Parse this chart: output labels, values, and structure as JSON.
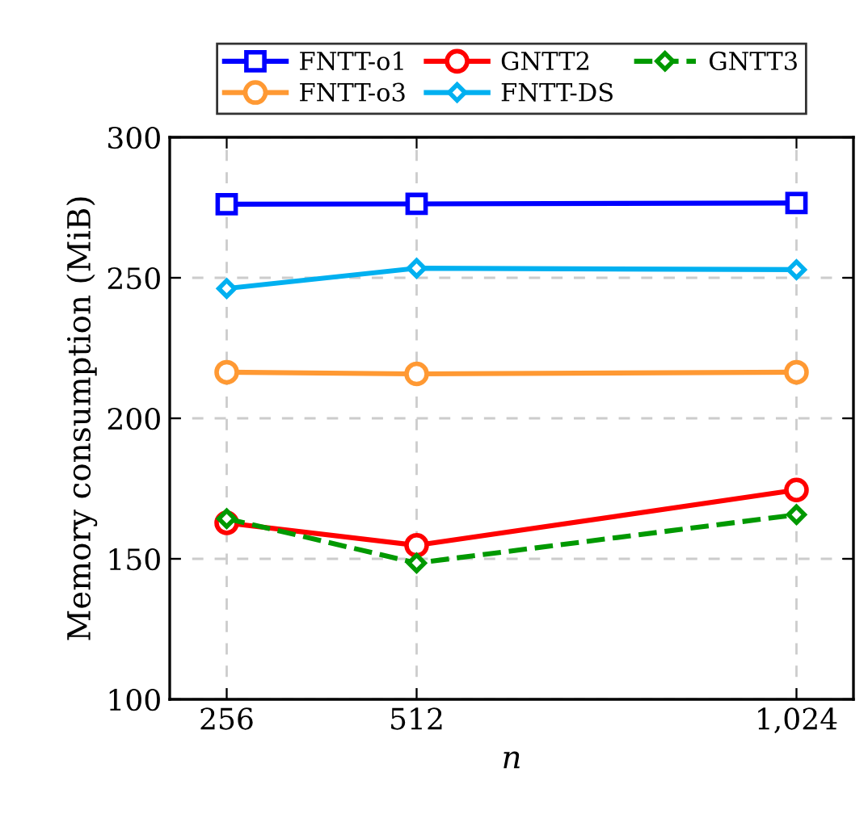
{
  "chart_data": {
    "type": "line",
    "xlabel": "n",
    "ylabel": "Memory consumption (MiB)",
    "x": [
      256,
      512,
      1024
    ],
    "xlim": [
      179.2,
      1100.8
    ],
    "xticks": [
      256,
      512,
      {
        "value": 1024,
        "label": "1,024"
      }
    ],
    "ylim": [
      100,
      300
    ],
    "yticks": [
      100,
      150,
      200,
      250,
      300
    ],
    "grid": true,
    "legend": "top",
    "series": [
      {
        "name": "FNTT-o1",
        "color": "#0000ff",
        "marker": "square",
        "line_style": "solid",
        "values": [
          276.2,
          276.3,
          276.6
        ]
      },
      {
        "name": "GNTT2",
        "color": "#ff0000",
        "marker": "circle",
        "line_style": "solid",
        "values": [
          162.8,
          154.8,
          174.5
        ]
      },
      {
        "name": "GNTT3",
        "color": "#009900",
        "marker": "diamond",
        "line_style": "dashed",
        "values": [
          164.3,
          148.5,
          165.7
        ]
      },
      {
        "name": "FNTT-o3",
        "color": "#ff9933",
        "marker": "circle",
        "line_style": "solid",
        "values": [
          216.4,
          215.8,
          216.4
        ]
      },
      {
        "name": "FNTT-DS",
        "color": "#00b0f0",
        "marker": "diamond",
        "line_style": "solid",
        "values": [
          246.2,
          253.4,
          252.9
        ]
      }
    ]
  }
}
